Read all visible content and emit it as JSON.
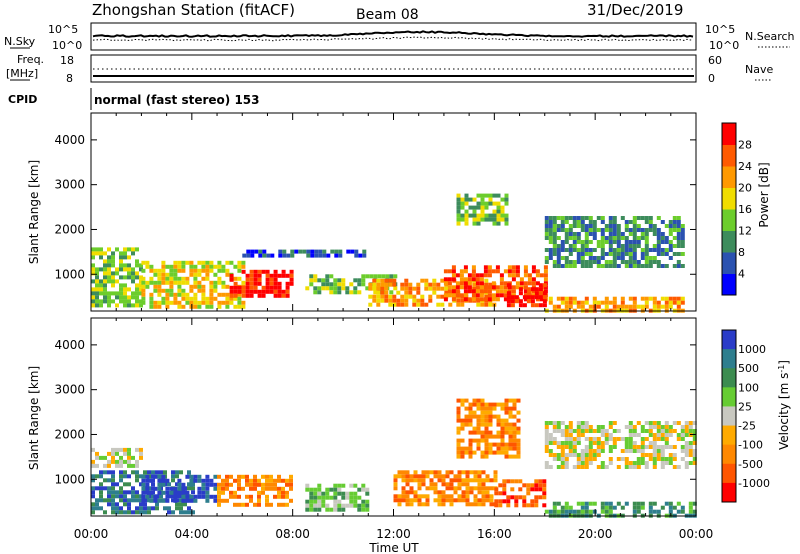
{
  "header": {
    "station": "Zhongshan Station (fitACF)",
    "beam": "Beam 08",
    "date": "31/Dec/2019"
  },
  "status_panel": {
    "nsky_label": "N.Sky",
    "nsky_ticks": [
      "10^5",
      "10^0"
    ],
    "nsearch_label": "N.Search",
    "nsearch_ticks": [
      "10^5",
      "10^0"
    ],
    "freq_label_1": "Freq.",
    "freq_label_2": "[MHz]",
    "freq_ticks": [
      "18",
      "8"
    ],
    "nave_label": "Nave",
    "nave_ticks": [
      "60",
      "0"
    ],
    "cpid_label": "CPID",
    "cpid_text": "normal (fast stereo) 153"
  },
  "colors": {
    "power": [
      "#0000ff",
      "#2b52b0",
      "#3d8c5c",
      "#6ccd2c",
      "#f0dd00",
      "#ff9900",
      "#ff5a00",
      "#ff0000"
    ],
    "velocity": [
      "#2a3cc8",
      "#2e7e8e",
      "#3c8c50",
      "#66cc33",
      "#c8c8c0",
      "#ffaa00",
      "#ff8800",
      "#ff5500",
      "#ff0000"
    ],
    "frame": "#000000"
  },
  "chart_data": [
    {
      "type": "heatmap",
      "title": "Power",
      "xlabel": "Time UT",
      "ylabel": "Slant Range [km]",
      "colorbar_label": "Power [dB]",
      "xlim": [
        0,
        24
      ],
      "x_tick_labels": [
        "00:00",
        "04:00",
        "08:00",
        "12:00",
        "16:00",
        "20:00",
        "00:00"
      ],
      "ylim": [
        180,
        4600
      ],
      "y_ticks": [
        1000,
        2000,
        3000,
        4000
      ],
      "colorbar_ticks": [
        "4",
        "8",
        "12",
        "16",
        "20",
        "24",
        "28"
      ],
      "colorbar_range": [
        0,
        32
      ],
      "regions": [
        {
          "t": [
            0.0,
            2.0
          ],
          "r": [
            300,
            1600
          ],
          "level": 3
        },
        {
          "t": [
            2.0,
            6.0
          ],
          "r": [
            300,
            1300
          ],
          "level": 4
        },
        {
          "t": [
            5.5,
            8.0
          ],
          "r": [
            500,
            1100
          ],
          "level": 7
        },
        {
          "t": [
            6.0,
            11.0
          ],
          "r": [
            1400,
            1550
          ],
          "level": 1
        },
        {
          "t": [
            8.5,
            12.0
          ],
          "r": [
            600,
            1000
          ],
          "level": 3
        },
        {
          "t": [
            11.0,
            16.0
          ],
          "r": [
            300,
            900
          ],
          "level": 5
        },
        {
          "t": [
            14.0,
            18.0
          ],
          "r": [
            400,
            1200
          ],
          "level": 6
        },
        {
          "t": [
            16.5,
            18.0
          ],
          "r": [
            300,
            800
          ],
          "level": 7
        },
        {
          "t": [
            14.5,
            16.5
          ],
          "r": [
            2100,
            2800
          ],
          "level": 3
        },
        {
          "t": [
            18.0,
            23.5
          ],
          "r": [
            1200,
            2300
          ],
          "level": 2
        },
        {
          "t": [
            18.0,
            23.5
          ],
          "r": [
            200,
            500
          ],
          "level": 5
        }
      ]
    },
    {
      "type": "heatmap",
      "title": "Velocity",
      "xlabel": "Time UT",
      "ylabel": "Slant Range [km]",
      "colorbar_label": "Velocity [m s^-1]",
      "xlim": [
        0,
        24
      ],
      "x_tick_labels": [
        "00:00",
        "04:00",
        "08:00",
        "12:00",
        "16:00",
        "20:00",
        "00:00"
      ],
      "ylim": [
        180,
        4600
      ],
      "y_ticks": [
        1000,
        2000,
        3000,
        4000
      ],
      "colorbar_ticks": [
        "1000",
        "500",
        "100",
        "25",
        "-25",
        "-100",
        "-500",
        "-1000"
      ],
      "regions": [
        {
          "t": [
            0.0,
            2.0
          ],
          "r": [
            1300,
            1700
          ],
          "level": 4
        },
        {
          "t": [
            0.0,
            4.0
          ],
          "r": [
            300,
            1200
          ],
          "level": 1
        },
        {
          "t": [
            2.0,
            5.0
          ],
          "r": [
            500,
            1100
          ],
          "level": 0
        },
        {
          "t": [
            5.0,
            8.0
          ],
          "r": [
            400,
            1100
          ],
          "level": 6
        },
        {
          "t": [
            8.5,
            11.0
          ],
          "r": [
            300,
            900
          ],
          "level": 3
        },
        {
          "t": [
            12.0,
            16.0
          ],
          "r": [
            400,
            1200
          ],
          "level": 6
        },
        {
          "t": [
            14.5,
            17.0
          ],
          "r": [
            1500,
            2800
          ],
          "level": 6
        },
        {
          "t": [
            16.0,
            18.0
          ],
          "r": [
            400,
            1000
          ],
          "level": 7
        },
        {
          "t": [
            18.0,
            24.0
          ],
          "r": [
            1300,
            2300
          ],
          "level": 4
        },
        {
          "t": [
            18.0,
            24.0
          ],
          "r": [
            200,
            500
          ],
          "level": 2
        }
      ]
    }
  ]
}
